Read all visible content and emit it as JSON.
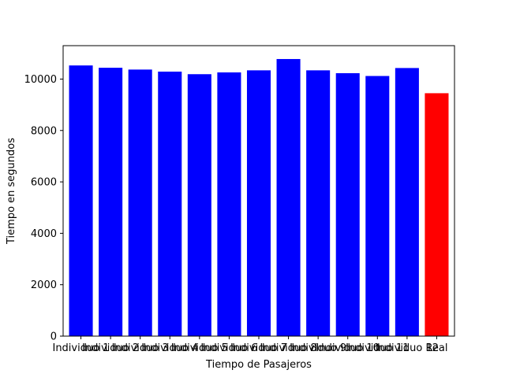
{
  "chart_data": {
    "type": "bar",
    "title": "",
    "xlabel": "Tiempo de Pasajeros",
    "ylabel": "Tiempo en segundos",
    "categories": [
      "Individuo 1",
      "Individuo 2",
      "Individuo 3",
      "Individuo 4",
      "Individuo 5",
      "Individuo 6",
      "Individuo 7",
      "Individuo 8",
      "Individuo 9",
      "Individuo 10",
      "Individuo 11",
      "Individuo 12",
      "Real"
    ],
    "values": [
      10530,
      10440,
      10370,
      10290,
      10190,
      10260,
      10340,
      10780,
      10340,
      10230,
      10120,
      10430,
      9450
    ],
    "bar_colors": [
      "#0000ff",
      "#0000ff",
      "#0000ff",
      "#0000ff",
      "#0000ff",
      "#0000ff",
      "#0000ff",
      "#0000ff",
      "#0000ff",
      "#0000ff",
      "#0000ff",
      "#0000ff",
      "#ff0000"
    ],
    "ylim": [
      0,
      11300
    ],
    "yticks": [
      0,
      2000,
      4000,
      6000,
      8000,
      10000
    ],
    "grid": false,
    "legend": "none"
  }
}
